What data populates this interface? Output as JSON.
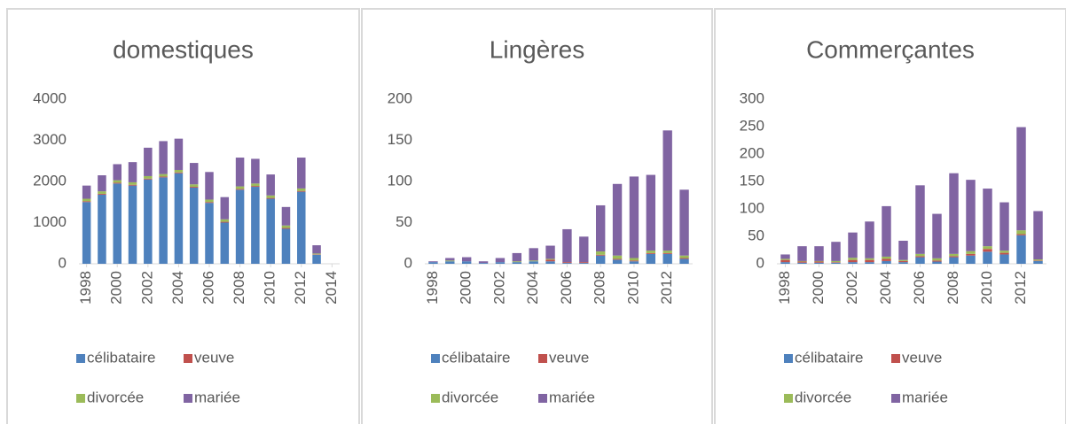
{
  "chart_data": [
    {
      "type": "bar",
      "stacked": true,
      "title": "domestiques",
      "x": [
        1998,
        1999,
        2000,
        2001,
        2002,
        2003,
        2004,
        2005,
        2006,
        2007,
        2008,
        2009,
        2010,
        2011,
        2012,
        2013
      ],
      "xlim": [
        1997.5,
        2014.5
      ],
      "xticks": [
        1998,
        2000,
        2002,
        2004,
        2006,
        2008,
        2010,
        2012,
        2014
      ],
      "ylim": [
        0,
        4000
      ],
      "yticks": [
        0,
        1000,
        2000,
        3000,
        4000
      ],
      "series": [
        {
          "name": "célibataire",
          "color": "#4e81bd",
          "values": [
            1500,
            1680,
            1950,
            1900,
            2050,
            2100,
            2200,
            1850,
            1480,
            1000,
            1800,
            1870,
            1580,
            850,
            1750,
            220
          ]
        },
        {
          "name": "veuve",
          "color": "#c0504d",
          "values": [
            20,
            20,
            20,
            20,
            20,
            20,
            20,
            20,
            20,
            20,
            20,
            20,
            20,
            20,
            20,
            10
          ]
        },
        {
          "name": "divorcée",
          "color": "#9bbb59",
          "values": [
            60,
            60,
            60,
            60,
            60,
            60,
            60,
            60,
            60,
            60,
            60,
            60,
            60,
            60,
            60,
            20
          ]
        },
        {
          "name": "mariée",
          "color": "#8064a2",
          "values": [
            320,
            390,
            390,
            490,
            690,
            800,
            760,
            520,
            670,
            540,
            700,
            600,
            510,
            450,
            750,
            200
          ]
        }
      ]
    },
    {
      "type": "bar",
      "stacked": true,
      "title": "Lingères",
      "x": [
        1998,
        1999,
        2000,
        2001,
        2002,
        2003,
        2004,
        2005,
        2006,
        2007,
        2008,
        2009,
        2010,
        2011,
        2012,
        2013
      ],
      "xlim": [
        1997.5,
        2013.5
      ],
      "xticks": [
        1998,
        2000,
        2002,
        2004,
        2006,
        2008,
        2010,
        2012
      ],
      "ylim": [
        0,
        200
      ],
      "yticks": [
        0,
        50,
        100,
        150,
        200
      ],
      "series": [
        {
          "name": "célibataire",
          "color": "#4e81bd",
          "values": [
            2,
            3,
            3,
            1,
            2,
            2,
            3,
            3,
            1,
            1,
            10,
            5,
            3,
            12,
            12,
            6
          ]
        },
        {
          "name": "veuve",
          "color": "#c0504d",
          "values": [
            0,
            0,
            0,
            0,
            0,
            0,
            0,
            2,
            1,
            1,
            1,
            1,
            1,
            1,
            1,
            1
          ]
        },
        {
          "name": "divorcée",
          "color": "#9bbb59",
          "values": [
            0,
            1,
            0,
            0,
            0,
            1,
            1,
            1,
            0,
            0,
            4,
            4,
            3,
            3,
            3,
            3
          ]
        },
        {
          "name": "mariée",
          "color": "#8064a2",
          "values": [
            1,
            3,
            5,
            2,
            5,
            10,
            15,
            16,
            40,
            31,
            56,
            87,
            99,
            92,
            146,
            80
          ]
        }
      ]
    },
    {
      "type": "bar",
      "stacked": true,
      "title": "Commerçantes",
      "x": [
        1998,
        1999,
        2000,
        2001,
        2002,
        2003,
        2004,
        2005,
        2006,
        2007,
        2008,
        2009,
        2010,
        2011,
        2012,
        2013
      ],
      "xlim": [
        1997.5,
        2013.5
      ],
      "xticks": [
        1998,
        2000,
        2002,
        2004,
        2006,
        2008,
        2010,
        2012
      ],
      "ylim": [
        0,
        300
      ],
      "yticks": [
        0,
        50,
        100,
        150,
        200,
        250,
        300
      ],
      "series": [
        {
          "name": "célibataire",
          "color": "#4e81bd",
          "values": [
            3,
            2,
            2,
            2,
            3,
            3,
            5,
            3,
            12,
            4,
            12,
            15,
            22,
            17,
            52,
            5
          ]
        },
        {
          "name": "veuve",
          "color": "#c0504d",
          "values": [
            4,
            2,
            2,
            1,
            4,
            4,
            4,
            2,
            2,
            2,
            2,
            3,
            5,
            3,
            2,
            1
          ]
        },
        {
          "name": "divorcée",
          "color": "#9bbb59",
          "values": [
            2,
            1,
            1,
            2,
            4,
            3,
            4,
            2,
            4,
            4,
            4,
            5,
            5,
            4,
            7,
            2
          ]
        },
        {
          "name": "mariée",
          "color": "#8064a2",
          "values": [
            8,
            27,
            27,
            35,
            46,
            67,
            92,
            35,
            125,
            81,
            147,
            130,
            105,
            88,
            188,
            88
          ]
        }
      ]
    }
  ]
}
